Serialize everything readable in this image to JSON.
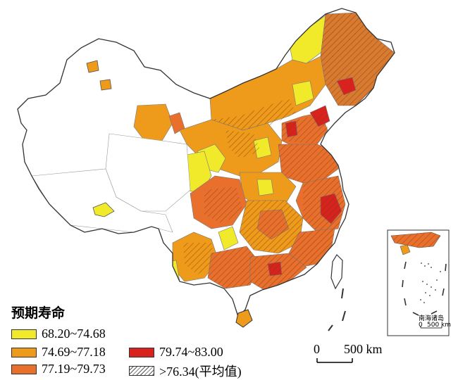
{
  "legend": {
    "title": "预期寿命",
    "items": [
      {
        "label": "68.20~74.68",
        "color": "#f1ea2b",
        "hatch": false
      },
      {
        "label": "74.69~77.18",
        "color": "#ee9a1a",
        "hatch": false
      },
      {
        "label": "77.19~79.73",
        "color": "#e8702c",
        "hatch": false
      },
      {
        "label": "79.74~83.00",
        "color": "#d8221e",
        "hatch": false
      },
      {
        "label": ">76.34(平均值)",
        "color": "#666666",
        "hatch": true
      }
    ]
  },
  "scale_bar": {
    "zero": "0",
    "value": "500 km"
  },
  "inset": {
    "label": "南海诸岛",
    "scale_zero": "0",
    "scale_value": "500 km"
  },
  "colors": {
    "no_data": "#ffffff",
    "boundary": "#777777",
    "outline": "#333333"
  }
}
